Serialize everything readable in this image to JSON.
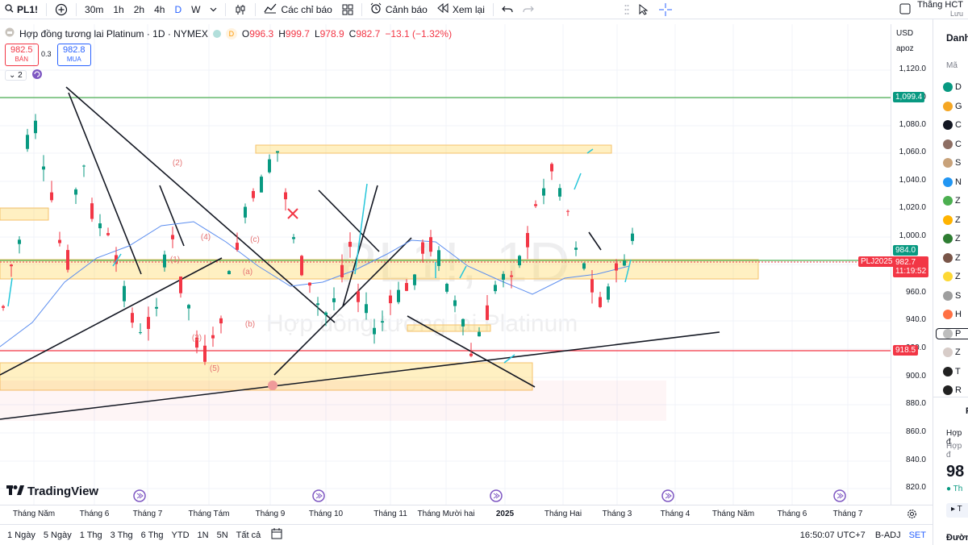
{
  "topbar": {
    "symbol": "PL1!",
    "add_symbol_icon": "plus-circle-icon",
    "intervals": [
      "30m",
      "1h",
      "2h",
      "4h",
      "D",
      "W"
    ],
    "active_interval": "D",
    "indicators_label": "Các chỉ báo",
    "alerts_label": "Cảnh báo",
    "replay_label": "Xem lại",
    "user_name": "Thắng HCT",
    "save_label": "Lưu"
  },
  "legend": {
    "title": "Hợp đồng tương lai Platinum · 1D · NYMEX",
    "o_label": "O",
    "o": "996.3",
    "h_label": "H",
    "h": "999.7",
    "l_label": "L",
    "l": "978.9",
    "c_label": "C",
    "c": "982.7",
    "change": "−13.1 (−1.32%)",
    "sell_price": "982.5",
    "sell_label": "BÁN",
    "spread": "0.3",
    "buy_price": "982.8",
    "buy_label": "MUA",
    "indicator_count": "2"
  },
  "yaxis": {
    "currency": "USD",
    "mode": "apoz",
    "labels": [
      "1,120.0",
      "1,100.0",
      "1,080.0",
      "1,060.0",
      "1,040.0",
      "1,020.0",
      "1,000.0",
      "980.0",
      "960.0",
      "940.0",
      "920.0",
      "900.0",
      "880.0",
      "860.0",
      "840.0",
      "820.0"
    ],
    "tag_1099": "1,099.4",
    "tag_984": "984.0",
    "tag_symbol": "PLJ2025",
    "tag_price": "982.7",
    "tag_timer": "11:19:52",
    "tag_918": "918.5"
  },
  "xaxis": {
    "labels": [
      "Tháng Năm",
      "Tháng 6",
      "Tháng 7",
      "Tháng Tám",
      "Tháng 9",
      "Tháng 10",
      "Tháng 11",
      "Tháng Mười hai",
      "2025",
      "Tháng Hai",
      "Tháng 3",
      "Tháng 4",
      "Tháng Năm",
      "Tháng 6",
      "Tháng 7"
    ]
  },
  "bottombar": {
    "ranges": [
      "1 Ngày",
      "5 Ngày",
      "1 Thg",
      "3 Thg",
      "6 Thg",
      "YTD",
      "1N",
      "5N",
      "Tất cả"
    ],
    "clock": "16:50:07 UTC+7",
    "adj": "B-ADJ",
    "set": "SET"
  },
  "watermark": {
    "symbol": "PL1!, 1D",
    "name": "Hợp đồng tương lai Platinum"
  },
  "annotations": [
    "(2)",
    "(4)",
    "(1)",
    "(3)",
    "(5)",
    "(c)",
    "(a)",
    "(b)"
  ],
  "logo": "TradingView",
  "sidebar": {
    "header": "Danh",
    "col": "Mã",
    "items": [
      {
        "code": "D",
        "color": "#089981",
        "icon": "dollar-icon"
      },
      {
        "code": "G",
        "color": "#f5a623",
        "icon": "gold-icon"
      },
      {
        "code": "C",
        "color": "#131722",
        "icon": "oil-icon"
      },
      {
        "code": "C",
        "color": "#8d6e63",
        "icon": "coffee-icon"
      },
      {
        "code": "S",
        "color": "#c8a27a",
        "icon": "silver-icon"
      },
      {
        "code": "N",
        "color": "#2196f3",
        "icon": "gas-icon"
      },
      {
        "code": "Z",
        "color": "#4caf50",
        "icon": "corn-icon"
      },
      {
        "code": "Z",
        "color": "#ffb300",
        "icon": "wheat-icon"
      },
      {
        "code": "Z",
        "color": "#2e7d32",
        "icon": "soy-icon"
      },
      {
        "code": "Z",
        "color": "#795548",
        "icon": "meal-icon"
      },
      {
        "code": "Z",
        "color": "#fdd835",
        "icon": "oil-seed-icon"
      },
      {
        "code": "S",
        "color": "#9e9e9e",
        "icon": "sugar-icon"
      },
      {
        "code": "H",
        "color": "#ff7043",
        "icon": "hog-icon"
      },
      {
        "code": "P",
        "color": "#bdbdbd",
        "icon": "platinum-icon"
      },
      {
        "code": "Z",
        "color": "#d7ccc8",
        "icon": "rice-icon"
      },
      {
        "code": "T",
        "color": "#212121",
        "icon": "treasury-icon"
      },
      {
        "code": "R",
        "color": "#212121",
        "icon": "rates-icon"
      }
    ],
    "detail_letter": "P",
    "detail_name_1": "Hợp đ",
    "detail_name_2": "Hợp đ",
    "detail_price": "98",
    "detail_status": "Th",
    "detail_btn": "T",
    "bottom_label": "Đườn"
  }
}
